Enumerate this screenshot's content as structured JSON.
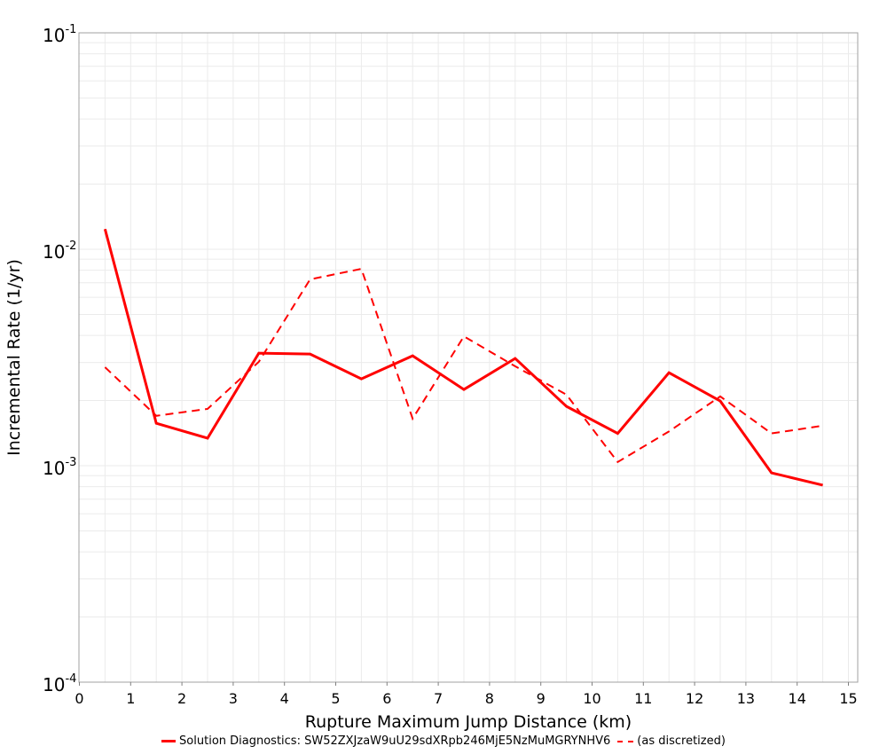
{
  "chart_data": {
    "type": "line",
    "title": "",
    "xlabel": "Rupture Maximum Jump Distance (km)",
    "ylabel": "Incremental Rate (1/yr)",
    "xlim": [
      0,
      15.2
    ],
    "ylim": [
      0.0001,
      0.1
    ],
    "yscale": "log",
    "grid": true,
    "legend_position": "bottom",
    "x_ticks": [
      "0",
      "1",
      "2",
      "3",
      "4",
      "5",
      "6",
      "7",
      "8",
      "9",
      "10",
      "11",
      "12",
      "13",
      "14",
      "15"
    ],
    "y_ticks": [
      {
        "base": "10",
        "exp": "-1"
      },
      {
        "base": "10",
        "exp": "-2"
      },
      {
        "base": "10",
        "exp": "-3"
      },
      {
        "base": "10",
        "exp": "-4"
      }
    ],
    "x": [
      0.5,
      1.5,
      2.5,
      3.5,
      4.5,
      5.5,
      6.5,
      7.5,
      8.5,
      9.5,
      10.5,
      11.5,
      12.5,
      13.5,
      14.5
    ],
    "series": [
      {
        "name": "Solution Diagnostics: SW52ZXJzaW9uU29sdXRpb246MjE5NzMuMGRYNHV6",
        "style": "solid",
        "color": "#ff0000",
        "values": [
          0.0124,
          0.00157,
          0.00134,
          0.00331,
          0.00328,
          0.00252,
          0.00322,
          0.00225,
          0.00313,
          0.00188,
          0.00141,
          0.00269,
          0.00199,
          0.000927,
          0.000813
        ]
      },
      {
        "name": "(as discretized)",
        "style": "dashed",
        "color": "#ff0000",
        "values": [
          0.00285,
          0.0017,
          0.00183,
          0.00302,
          0.00726,
          0.00812,
          0.00165,
          0.00396,
          0.00288,
          0.00213,
          0.00104,
          0.00144,
          0.00209,
          0.00141,
          0.00153
        ]
      }
    ]
  },
  "legend": {
    "solid_label": "Solution Diagnostics: SW52ZXJzaW9uU29sdXRpb246MjE5NzMuMGRYNHV6",
    "dashed_label": "(as discretized)"
  }
}
